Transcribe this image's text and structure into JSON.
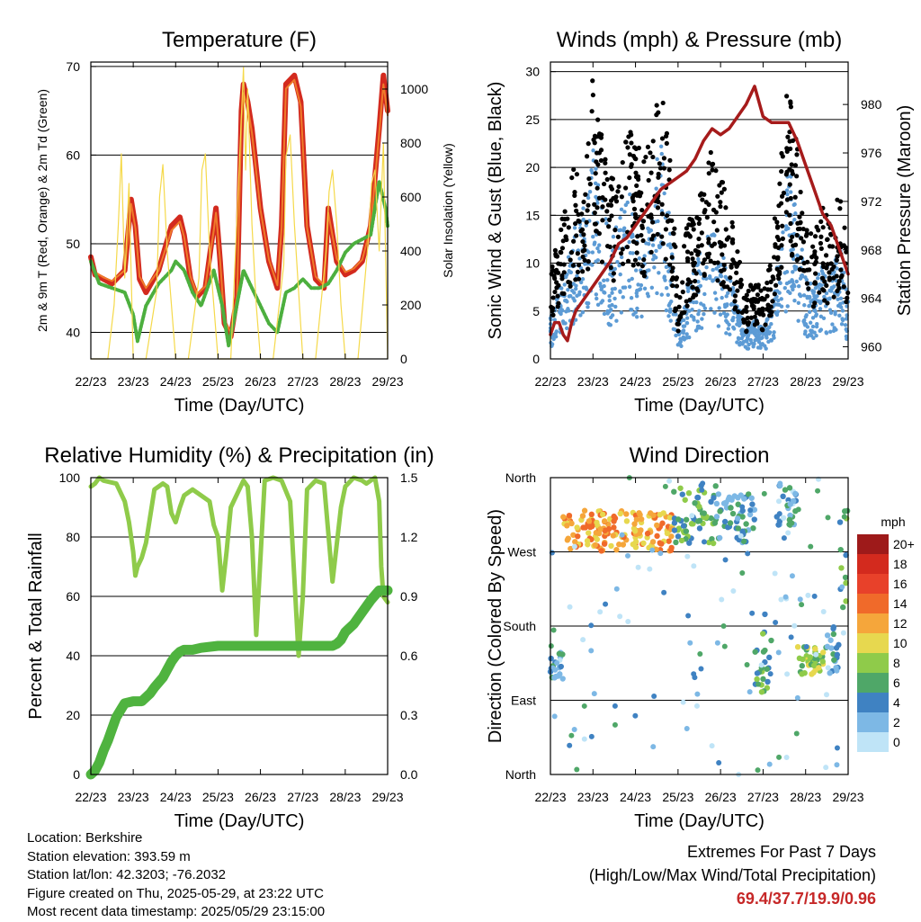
{
  "x_ticks": [
    "22/23",
    "23/23",
    "24/23",
    "25/23",
    "26/23",
    "27/23",
    "28/23",
    "29/23"
  ],
  "xlabel": "Time (Day/UTC)",
  "colors": {
    "red": "#d32a1e",
    "orange": "#ef7b2a",
    "green": "#4caf3e",
    "yellow": "#f5d94a",
    "black": "#000000",
    "blue": "#5c9bd5",
    "maroon": "#a61b1b",
    "rh_green": "#8fcb4a",
    "precip_green": "#4fb33f"
  },
  "chart_data": [
    {
      "id": "temperature",
      "type": "line",
      "title": "Temperature (F)",
      "ylabel": "2m & 9m T (Red, Orange) & 2m Td (Green)",
      "y2label": "Solar Insolation (Yellow)",
      "ylim": [
        37,
        70.5
      ],
      "yticks": [
        40,
        50,
        60,
        70
      ],
      "y2lim": [
        0,
        1100
      ],
      "y2ticks": [
        0,
        200,
        400,
        600,
        800,
        1000
      ],
      "hlines": [
        40,
        50,
        60,
        70
      ],
      "series": [
        {
          "key": "t2m",
          "color": "red",
          "axis": "y",
          "x": [
            0,
            0.1,
            0.3,
            0.5,
            0.8,
            0.95,
            1.05,
            1.15,
            1.3,
            1.6,
            1.9,
            2.1,
            2.2,
            2.35,
            2.5,
            2.7,
            2.9,
            2.95,
            3.05,
            3.15,
            3.3,
            3.45,
            3.55,
            3.6,
            3.7,
            3.8,
            4.0,
            4.2,
            4.4,
            4.5,
            4.6,
            4.8,
            4.95,
            5.1,
            5.3,
            5.5,
            5.6,
            5.8,
            6.0,
            6.2,
            6.4,
            6.6,
            6.8,
            6.9,
            7.0
          ],
          "y": [
            48.5,
            46.5,
            46,
            45.5,
            47,
            55,
            52,
            46,
            44.5,
            47,
            52,
            53,
            51,
            46,
            44,
            45,
            52,
            54,
            48,
            41,
            39.5,
            44,
            65,
            68,
            66,
            63,
            54,
            48,
            45,
            52,
            68,
            69,
            66,
            52,
            46,
            45,
            54,
            48,
            46.5,
            47,
            48,
            52,
            63,
            69,
            65
          ]
        },
        {
          "key": "t9m",
          "color": "orange",
          "axis": "y",
          "x": [
            0,
            0.1,
            0.3,
            0.5,
            0.8,
            0.95,
            1.05,
            1.15,
            1.3,
            1.6,
            1.9,
            2.1,
            2.2,
            2.35,
            2.5,
            2.7,
            2.9,
            2.95,
            3.05,
            3.15,
            3.3,
            3.45,
            3.55,
            3.6,
            3.7,
            3.8,
            4.0,
            4.2,
            4.4,
            4.5,
            4.6,
            4.8,
            4.95,
            5.1,
            5.3,
            5.5,
            5.6,
            5.8,
            6.0,
            6.2,
            6.4,
            6.6,
            6.8,
            6.9,
            7.0
          ],
          "y": [
            48.3,
            46.8,
            46.2,
            45.8,
            47,
            54.5,
            51.8,
            46.3,
            45,
            47,
            51.5,
            52.5,
            50.8,
            46.3,
            44.3,
            45.2,
            51.5,
            53.5,
            48,
            41.3,
            40,
            44.2,
            64,
            67,
            65.5,
            62.5,
            53.8,
            48.2,
            45.3,
            51.8,
            67.5,
            68.5,
            65.5,
            51.8,
            46.3,
            45.3,
            53.5,
            48.3,
            46.8,
            47.2,
            48.2,
            51.8,
            62.5,
            68,
            64.5
          ]
        },
        {
          "key": "td2m",
          "color": "green",
          "axis": "y",
          "x": [
            0,
            0.2,
            0.5,
            0.8,
            1.0,
            1.1,
            1.3,
            1.6,
            1.9,
            2.0,
            2.2,
            2.4,
            2.6,
            2.9,
            3.1,
            3.25,
            3.4,
            3.6,
            3.8,
            4.0,
            4.2,
            4.4,
            4.6,
            4.8,
            5.0,
            5.2,
            5.4,
            5.6,
            5.8,
            6.0,
            6.2,
            6.4,
            6.6,
            6.8,
            6.95,
            7.0
          ],
          "y": [
            48,
            45.5,
            45,
            44.5,
            42,
            39,
            43,
            45.5,
            47,
            48,
            47,
            44.5,
            43,
            47,
            43,
            38.5,
            42,
            47,
            45,
            43,
            41,
            40,
            44.5,
            45,
            46,
            45,
            45,
            45.5,
            47,
            49,
            50,
            50.5,
            51,
            57,
            54,
            52
          ]
        },
        {
          "key": "solar",
          "color": "yellow",
          "axis": "y2",
          "x": [
            0,
            0.4,
            0.55,
            0.65,
            0.72,
            0.8,
            0.9,
            1.0,
            1.3,
            1.55,
            1.62,
            1.7,
            1.8,
            1.9,
            2.0,
            2.3,
            2.55,
            2.62,
            2.7,
            2.8,
            2.9,
            3.0,
            3.3,
            3.55,
            3.6,
            3.65,
            3.7,
            3.8,
            3.9,
            4.0,
            4.3,
            4.55,
            4.6,
            4.7,
            4.8,
            4.9,
            5.0,
            5.3,
            5.55,
            5.62,
            5.7,
            5.8,
            5.9,
            6.0,
            6.3,
            6.55,
            6.62,
            6.7,
            6.8,
            6.9,
            7.0
          ],
          "y": [
            0,
            0,
            200,
            500,
            760,
            300,
            650,
            0,
            0,
            250,
            600,
            720,
            400,
            200,
            0,
            0,
            300,
            700,
            760,
            400,
            200,
            0,
            0,
            900,
            1080,
            700,
            1000,
            500,
            200,
            0,
            0,
            350,
            750,
            830,
            500,
            250,
            0,
            0,
            400,
            620,
            700,
            500,
            200,
            0,
            0,
            450,
            650,
            700,
            400,
            800,
            0
          ]
        }
      ]
    },
    {
      "id": "winds",
      "type": "scatter+line",
      "title": "Winds (mph) & Pressure (mb)",
      "ylabel": "Sonic Wind & Gust (Blue, Black)",
      "y2label": "Station Pressure (Maroon)",
      "ylim": [
        0,
        31
      ],
      "yticks": [
        0,
        5,
        10,
        15,
        20,
        25,
        30
      ],
      "y2lim": [
        959,
        983.5
      ],
      "y2ticks": [
        960,
        964,
        968,
        972,
        976,
        980
      ],
      "hlines": [
        5,
        10,
        15,
        20,
        25,
        30
      ],
      "series": [
        {
          "key": "pressure",
          "color": "maroon",
          "axis": "y2",
          "x": [
            0,
            0.1,
            0.2,
            0.3,
            0.4,
            0.5,
            0.6,
            0.8,
            1.0,
            1.2,
            1.4,
            1.6,
            1.8,
            2.0,
            2.2,
            2.4,
            2.6,
            2.8,
            3.0,
            3.2,
            3.4,
            3.6,
            3.8,
            4.0,
            4.2,
            4.4,
            4.6,
            4.8,
            5.0,
            5.2,
            5.4,
            5.6,
            5.8,
            6.0,
            6.2,
            6.4,
            6.6,
            6.8,
            7.0
          ],
          "y": [
            961,
            962,
            962,
            961,
            960.5,
            962,
            963,
            964,
            965,
            966,
            967,
            968.5,
            969,
            970,
            971,
            972,
            973,
            973.5,
            974,
            974.5,
            975.5,
            977,
            978,
            977.5,
            978,
            979,
            980,
            981.5,
            979,
            978.5,
            978.5,
            978.5,
            977,
            975,
            973,
            971,
            970,
            968,
            966
          ]
        }
      ],
      "gust_envelope": {
        "x": [
          0,
          0.3,
          0.6,
          0.9,
          1.0,
          1.2,
          1.4,
          1.6,
          1.8,
          2.0,
          2.2,
          2.4,
          2.6,
          2.8,
          3.0,
          3.2,
          3.4,
          3.6,
          3.8,
          4.0,
          4.2,
          4.4,
          4.6,
          4.8,
          5.0,
          5.2,
          5.4,
          5.6,
          5.8,
          6.0,
          6.2,
          6.4,
          6.6,
          6.8,
          7.0
        ],
        "y": [
          8,
          14,
          18,
          20,
          26,
          22,
          16,
          20,
          22,
          20,
          18,
          22,
          26,
          20,
          6,
          12,
          14,
          16,
          20,
          17,
          14,
          10,
          6,
          8,
          6,
          10,
          18,
          26,
          20,
          14,
          12,
          14,
          12,
          16,
          10
        ]
      },
      "wind_envelope": {
        "x": [
          0,
          0.3,
          0.6,
          0.9,
          1.0,
          1.2,
          1.4,
          1.6,
          1.8,
          2.0,
          2.2,
          2.4,
          2.6,
          2.8,
          3.0,
          3.2,
          3.4,
          3.6,
          3.8,
          4.0,
          4.2,
          4.4,
          4.6,
          4.8,
          5.0,
          5.2,
          5.4,
          5.6,
          5.8,
          6.0,
          6.2,
          6.4,
          6.6,
          6.8,
          7.0
        ],
        "y": [
          3,
          6,
          10,
          12,
          15,
          12,
          8,
          10,
          12,
          11,
          10,
          12,
          16,
          10,
          2,
          5,
          7,
          8,
          10,
          8,
          6,
          4,
          2,
          3,
          2,
          4,
          8,
          14,
          10,
          6,
          5,
          7,
          6,
          8,
          4
        ]
      }
    },
    {
      "id": "rh_precip",
      "type": "line",
      "title": "Relative Humidity (%) & Precipitation (in)",
      "ylabel": "Percent & Total Rainfall",
      "ylim": [
        0,
        100
      ],
      "yticks": [
        0,
        20,
        40,
        60,
        80,
        100
      ],
      "y2lim": [
        0,
        1.5
      ],
      "y2ticks": [
        "0.0",
        "0.3",
        "0.6",
        "0.9",
        "1.2",
        "1.5"
      ],
      "hlines": [
        20,
        40,
        60,
        80,
        100
      ],
      "series": [
        {
          "key": "rh",
          "color": "rh_green",
          "axis": "y",
          "x": [
            0,
            0.1,
            0.2,
            0.3,
            0.6,
            0.8,
            0.9,
            1.0,
            1.05,
            1.1,
            1.2,
            1.3,
            1.5,
            1.7,
            1.8,
            1.9,
            2.0,
            2.1,
            2.2,
            2.4,
            2.6,
            2.8,
            2.9,
            3.0,
            3.1,
            3.2,
            3.3,
            3.6,
            3.7,
            3.8,
            3.9,
            4.1,
            4.3,
            4.5,
            4.7,
            4.9,
            5.0,
            5.1,
            5.3,
            5.5,
            5.7,
            5.9,
            6.0,
            6.2,
            6.4,
            6.5,
            6.7,
            6.8,
            6.85,
            6.9,
            7.0
          ],
          "y": [
            97,
            98,
            100,
            99,
            98,
            92,
            85,
            75,
            67,
            70,
            73,
            78,
            96,
            98,
            97,
            88,
            85,
            90,
            94,
            96,
            94,
            92,
            84,
            80,
            62,
            75,
            90,
            99,
            97,
            80,
            47,
            99,
            100,
            99,
            92,
            40,
            60,
            96,
            99,
            98,
            65,
            90,
            97,
            100,
            99,
            98,
            100,
            92,
            70,
            60,
            58
          ]
        },
        {
          "key": "precip",
          "color": "precip_green",
          "axis": "y2",
          "x": [
            0,
            0.1,
            0.2,
            0.3,
            0.4,
            0.5,
            0.6,
            0.8,
            1.0,
            1.2,
            1.4,
            1.5,
            1.7,
            1.9,
            2.0,
            2.1,
            2.2,
            2.4,
            2.6,
            3.0,
            3.5,
            4.0,
            4.5,
            5.0,
            5.5,
            5.7,
            5.8,
            5.9,
            6.0,
            6.2,
            6.4,
            6.6,
            6.8,
            7.0
          ],
          "y": [
            0,
            0.02,
            0.06,
            0.12,
            0.17,
            0.23,
            0.29,
            0.36,
            0.37,
            0.37,
            0.41,
            0.44,
            0.49,
            0.57,
            0.6,
            0.62,
            0.63,
            0.63,
            0.64,
            0.65,
            0.65,
            0.65,
            0.65,
            0.65,
            0.65,
            0.65,
            0.66,
            0.68,
            0.72,
            0.76,
            0.82,
            0.88,
            0.93,
            0.93
          ]
        }
      ]
    },
    {
      "id": "wind_dir",
      "type": "scatter",
      "title": "Wind Direction",
      "ylabel": "Direction (Colored By Speed)",
      "ylim": [
        0,
        360
      ],
      "yticks": [
        "North",
        "East",
        "South",
        "West",
        "North"
      ],
      "hlines": [
        90,
        180,
        270
      ],
      "legend_title": "mph",
      "legend_labels": [
        "20+",
        "18",
        "16",
        "14",
        "12",
        "10",
        "8",
        "6",
        "4",
        "2",
        "0"
      ],
      "legend_colors": [
        "#9e1a1a",
        "#d32a1e",
        "#e8412a",
        "#f06a2a",
        "#f5a63b",
        "#e7d84f",
        "#8fcb4a",
        "#4fa768",
        "#3f82c2",
        "#7db8e5",
        "#bfe4f7"
      ],
      "clusters": [
        {
          "x0": 0.0,
          "x1": 0.3,
          "y0": 115,
          "y1": 150,
          "speed": 4
        },
        {
          "x0": 0.3,
          "x1": 2.9,
          "y0": 270,
          "y1": 320,
          "speed": 12
        },
        {
          "x0": 2.9,
          "x1": 3.9,
          "y0": 280,
          "y1": 355,
          "speed": 6
        },
        {
          "x0": 3.9,
          "x1": 4.8,
          "y0": 280,
          "y1": 340,
          "speed": 4
        },
        {
          "x0": 4.8,
          "x1": 5.2,
          "y0": 100,
          "y1": 200,
          "speed": 6
        },
        {
          "x0": 5.3,
          "x1": 5.8,
          "y0": 300,
          "y1": 355,
          "speed": 3
        },
        {
          "x0": 5.8,
          "x1": 6.5,
          "y0": 120,
          "y1": 155,
          "speed": 8
        },
        {
          "x0": 6.5,
          "x1": 6.8,
          "y0": 120,
          "y1": 180,
          "speed": 4
        },
        {
          "x0": 6.8,
          "x1": 7.0,
          "y0": 180,
          "y1": 320,
          "speed": 6
        }
      ]
    }
  ],
  "info": {
    "location": "Location: Berkshire",
    "elevation": "Station elevation: 393.59 m",
    "latlon": "Station lat/lon: 42.3203; -76.2032",
    "created": "Figure created on Thu, 2025-05-29, at 23:22 UTC",
    "recent": "Most recent data timestamp: 2025/05/29 23:15:00"
  },
  "extremes": {
    "title": "Extremes For Past 7 Days",
    "subtitle": "(High/Low/Max Wind/Total Precipitation)",
    "values": "69.4/37.7/19.9/0.96"
  }
}
